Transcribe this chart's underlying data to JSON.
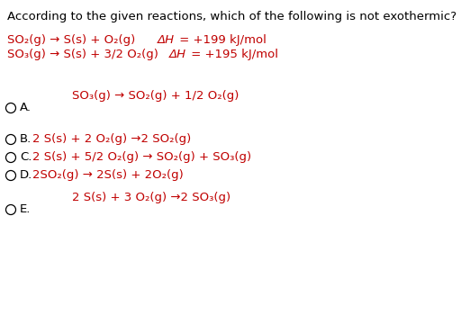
{
  "bg_color": "#ffffff",
  "text_color": "#000000",
  "red_color": "#c00000",
  "title": "According to the given reactions, which of the following is not exothermic?",
  "r1_part1": "SO₂(g) → S(s) + O₂(g)",
  "r1_dh_italic": "ΔH",
  "r1_dh_rest": " = +199 kJ/mol",
  "r2_part1": "SO₃(g) → S(s) + 3/2 O₂(g)",
  "r2_dh_italic": "ΔH",
  "r2_dh_rest": " = +195 kJ/mol",
  "above_A": "SO₃(g) → SO₂(g) + 1/2 O₂(g)",
  "opt_B": "2 S(s) + 2 O₂(g) →2 SO₂(g)",
  "opt_C": "2 S(s) + 5/2 O₂(g) → SO₂(g) + SO₃(g)",
  "opt_D": "2SO₂(g) → 2S(s) + 2O₂(g)",
  "above_E": "2 S(s) + 3 O₂(g) →2 SO₃(g)",
  "font_size": 9.5,
  "small_font": 8.5
}
